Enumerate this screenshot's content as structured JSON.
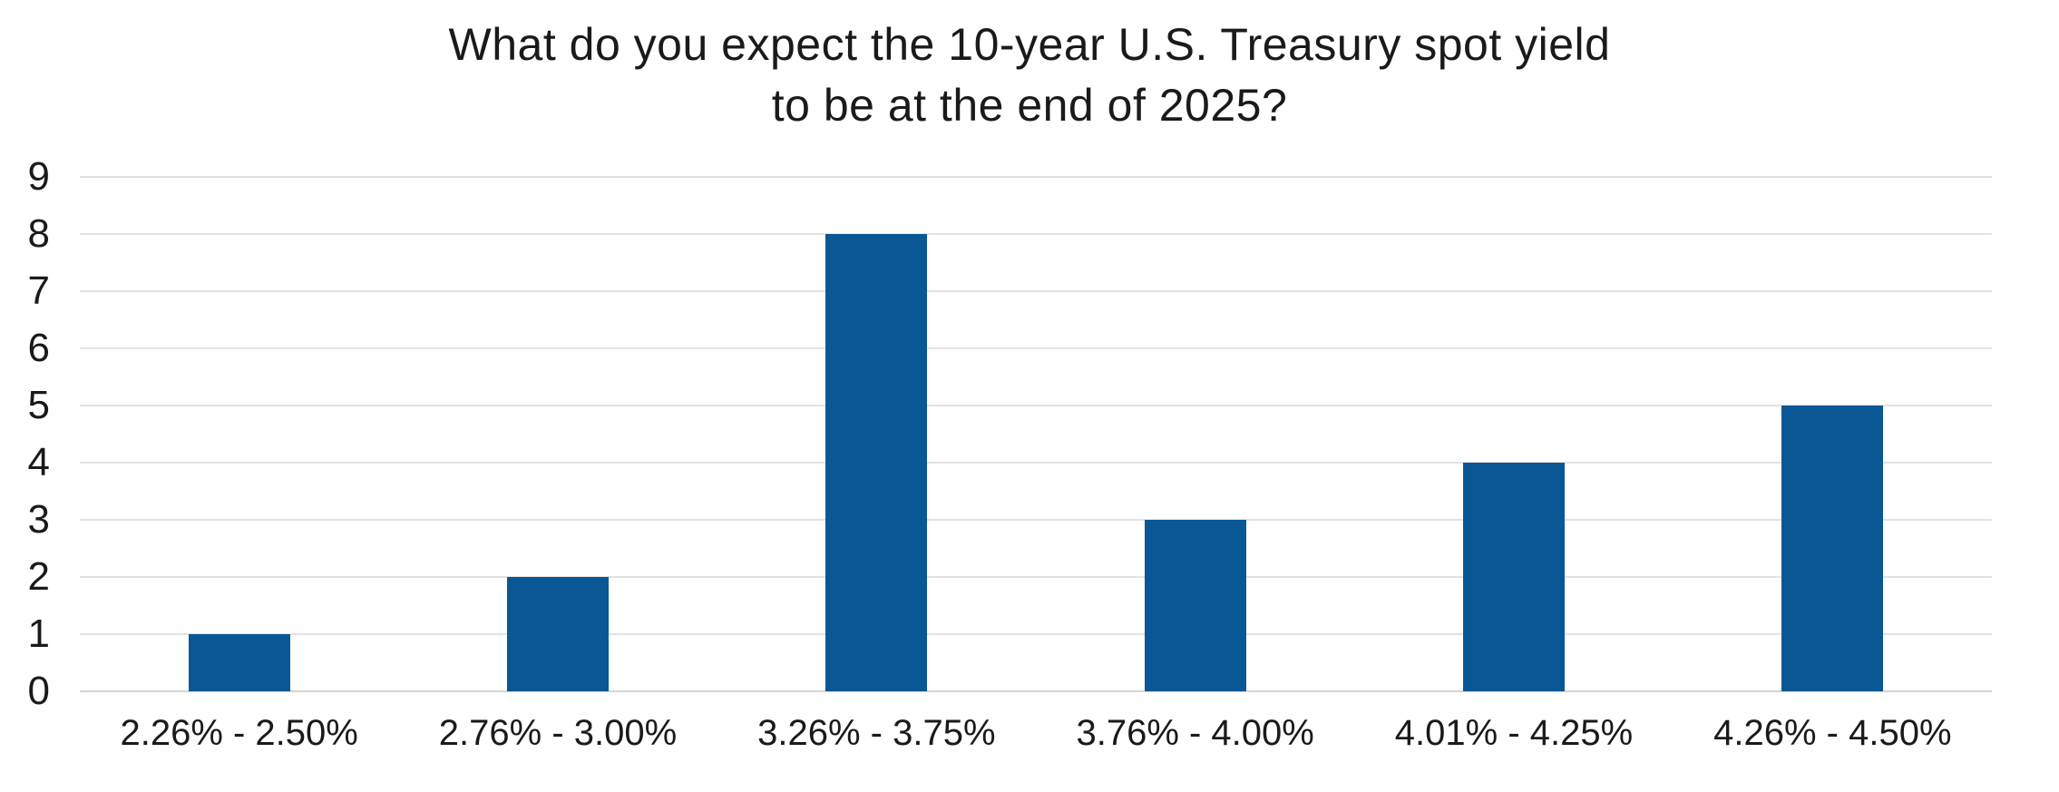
{
  "chart_data": {
    "type": "bar",
    "title": "What do you expect the 10-year U.S. Treasury spot yield to be at the end of 2025?",
    "title_lines": [
      "What do you expect the 10-year U.S. Treasury spot yield",
      "to be at the end of 2025?"
    ],
    "categories": [
      "2.26% - 2.50%",
      "2.76% - 3.00%",
      "3.26% - 3.75%",
      "3.76% - 4.00%",
      "4.01% - 4.25%",
      "4.26% - 4.50%"
    ],
    "values": [
      1,
      2,
      8,
      3,
      4,
      5
    ],
    "xlabel": "",
    "ylabel": "",
    "ylim": [
      0,
      9
    ],
    "yticks": [
      0,
      1,
      2,
      3,
      4,
      5,
      6,
      7,
      8,
      9
    ],
    "grid": true,
    "legend": false,
    "layout": {
      "legend_position": "none",
      "bar_orientation": "vertical"
    },
    "colors": {
      "bar": "#0A5795",
      "gridline": "#E2E2E2",
      "axis_line": "#D4D4D4",
      "text": "#1A1A1A",
      "background": "#FFFFFF"
    }
  }
}
